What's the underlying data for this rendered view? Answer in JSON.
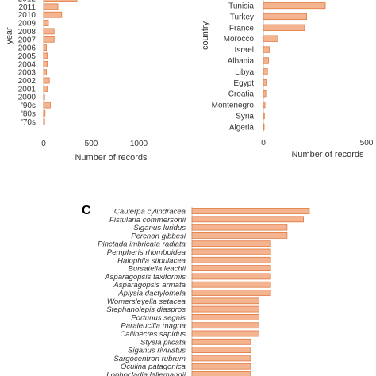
{
  "colors": {
    "bar_fill": "#f3b48f",
    "bar_stroke": "#e07840"
  },
  "chart_data": [
    {
      "type": "bar",
      "orientation": "horizontal",
      "ylabel": "year",
      "xlabel": "Number of records",
      "xticks": [
        0,
        500,
        1000
      ],
      "xlim": [
        0,
        1000
      ],
      "categories": [
        "2012",
        "2011",
        "2010",
        "2009",
        "2008",
        "2007",
        "2006",
        "2005",
        "2004",
        "2003",
        "2002",
        "2001",
        "2000",
        "'90s",
        "'80s",
        "'70s"
      ],
      "values": [
        350,
        150,
        190,
        50,
        110,
        110,
        30,
        40,
        40,
        30,
        60,
        40,
        10,
        70,
        15,
        10
      ]
    },
    {
      "type": "bar",
      "orientation": "horizontal",
      "ylabel": "country",
      "xlabel": "Number of records",
      "xticks": [
        0,
        500
      ],
      "xlim": [
        0,
        1000
      ],
      "categories": [
        "Tunisia",
        "Turkey",
        "France",
        "Morocco",
        "Israel",
        "Albania",
        "Libya",
        "Egypt",
        "Croatia",
        "Montenegro",
        "Syria",
        "Algeria"
      ],
      "values": [
        300,
        210,
        200,
        70,
        30,
        25,
        20,
        15,
        12,
        8,
        5,
        3
      ]
    },
    {
      "type": "bar",
      "orientation": "horizontal",
      "panel_label": "C",
      "categories": [
        "Caulerpa cylindracea",
        "Fistularia commersonii",
        "Siganus luridus",
        "Percnon gibbesi",
        "Pinctada imbricata radiata",
        "Pempheris rhomboidea",
        "Halophila stipulacea",
        "Bursatella leachii",
        "Asparagopsis taxiformis",
        "Asparagopsis armata",
        "Aplysia dactylomela",
        "Womersleyella setacea",
        "Stephanolepis diaspros",
        "Portunus segnis",
        "Paraleucilla magna",
        "Callinectes sapidus",
        "Styela plicata",
        "Siganus rivulatus",
        "Sargocentron rubrum",
        "Oculina patagonica",
        "Lophocladia lallemandii"
      ],
      "values": [
        100,
        95,
        81,
        81,
        67,
        67,
        67,
        67,
        67,
        67,
        67,
        57,
        57,
        57,
        57,
        57,
        50,
        50,
        50,
        50,
        50
      ],
      "xlim": [
        0,
        100
      ]
    }
  ]
}
